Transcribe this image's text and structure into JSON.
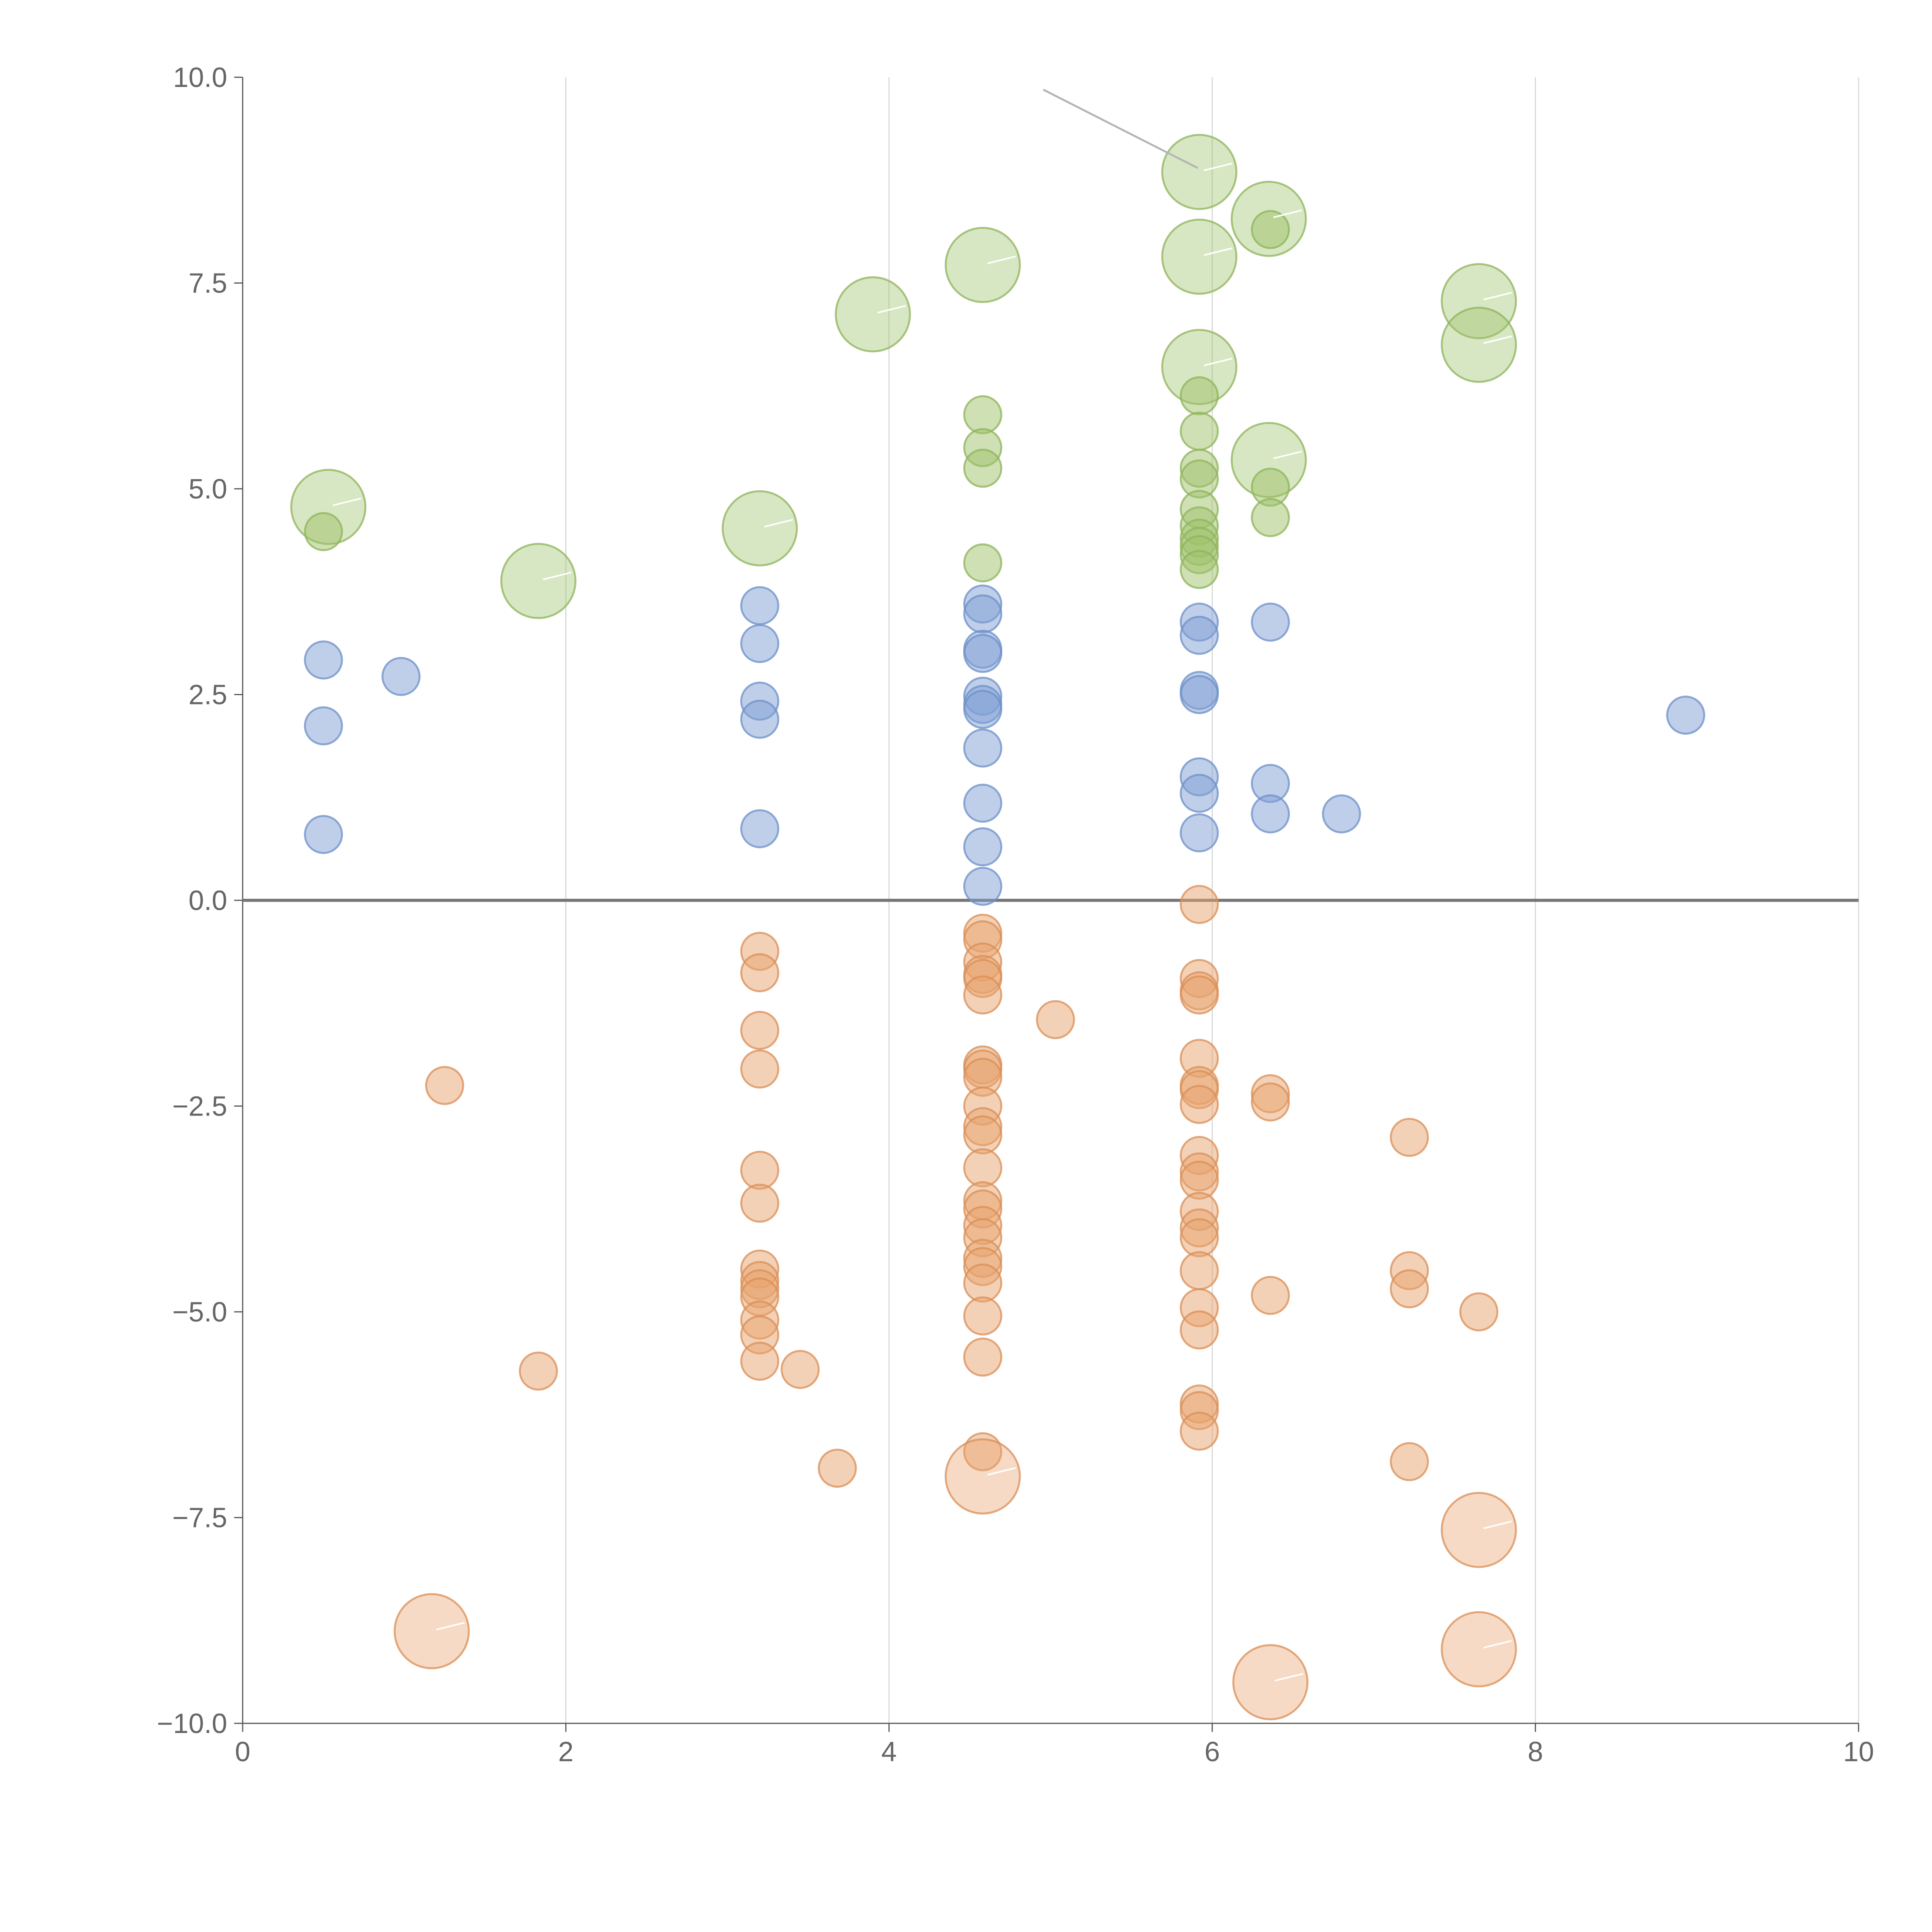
{
  "chart_data": {
    "type": "scatter",
    "title": "",
    "xlabel": "",
    "ylabel": "",
    "xlim": [
      0,
      10
    ],
    "ylim": [
      -10,
      10
    ],
    "grid": "vertical",
    "x_ticks": [
      "0",
      "2",
      "4",
      "6",
      "8",
      "10"
    ],
    "y_ticks": [
      "10.0",
      "7.5",
      "5.0",
      "2.5",
      "0.0",
      "−2.5",
      "−5.0",
      "−7.5",
      "−10.0"
    ],
    "series": [
      {
        "name": "green",
        "color": "#9dc26a",
        "stroke": "#8db35a",
        "points": [
          [
            5.92,
            8.85,
            1
          ],
          [
            6.35,
            8.28,
            1
          ],
          [
            6.36,
            8.15,
            0
          ],
          [
            4.58,
            7.72,
            1
          ],
          [
            5.92,
            7.82,
            1
          ],
          [
            7.65,
            7.28,
            1
          ],
          [
            3.9,
            7.12,
            1
          ],
          [
            7.65,
            6.75,
            1
          ],
          [
            5.92,
            6.48,
            1
          ],
          [
            5.92,
            6.13,
            0
          ],
          [
            4.58,
            5.9,
            0
          ],
          [
            5.92,
            5.7,
            0
          ],
          [
            4.58,
            5.5,
            0
          ],
          [
            4.58,
            5.25,
            0
          ],
          [
            5.92,
            5.25,
            0
          ],
          [
            5.92,
            5.12,
            0
          ],
          [
            6.35,
            5.35,
            1
          ],
          [
            6.36,
            5.02,
            0
          ],
          [
            0.53,
            4.78,
            1
          ],
          [
            0.5,
            4.48,
            0
          ],
          [
            3.2,
            4.52,
            1
          ],
          [
            5.92,
            4.75,
            0
          ],
          [
            6.36,
            4.65,
            0
          ],
          [
            5.92,
            4.55,
            0
          ],
          [
            5.92,
            4.4,
            0
          ],
          [
            5.92,
            4.3,
            0
          ],
          [
            5.92,
            4.2,
            0
          ],
          [
            5.92,
            4.02,
            0
          ],
          [
            4.58,
            4.1,
            0
          ],
          [
            1.83,
            3.88,
            1
          ]
        ]
      },
      {
        "name": "blue",
        "color": "#7f9fd3",
        "stroke": "#6c8fc8",
        "points": [
          [
            0.5,
            2.92,
            0
          ],
          [
            0.98,
            2.72,
            0
          ],
          [
            0.5,
            2.12,
            0
          ],
          [
            0.5,
            0.8,
            0
          ],
          [
            3.2,
            3.58,
            0
          ],
          [
            3.2,
            3.12,
            0
          ],
          [
            3.2,
            2.42,
            0
          ],
          [
            3.2,
            2.2,
            0
          ],
          [
            3.2,
            0.87,
            0
          ],
          [
            4.58,
            3.6,
            0
          ],
          [
            4.58,
            3.48,
            0
          ],
          [
            4.58,
            3.05,
            0
          ],
          [
            4.58,
            3.0,
            0
          ],
          [
            4.58,
            2.48,
            0
          ],
          [
            4.58,
            2.38,
            0
          ],
          [
            4.58,
            2.32,
            0
          ],
          [
            4.58,
            1.85,
            0
          ],
          [
            4.58,
            1.18,
            0
          ],
          [
            4.58,
            0.65,
            0
          ],
          [
            4.58,
            0.17,
            0
          ],
          [
            5.92,
            3.38,
            0
          ],
          [
            5.92,
            3.22,
            0
          ],
          [
            5.92,
            2.55,
            0
          ],
          [
            5.92,
            2.5,
            0
          ],
          [
            5.92,
            1.5,
            0
          ],
          [
            5.92,
            1.3,
            0
          ],
          [
            5.92,
            0.82,
            0
          ],
          [
            6.36,
            3.38,
            0
          ],
          [
            6.36,
            1.42,
            0
          ],
          [
            6.36,
            1.05,
            0
          ],
          [
            6.8,
            1.05,
            0
          ],
          [
            8.93,
            2.25,
            0
          ]
        ]
      },
      {
        "name": "orange",
        "color": "#e8a36d",
        "stroke": "#d98d55",
        "points": [
          [
            1.25,
            -2.25,
            0
          ],
          [
            1.83,
            -5.72,
            0
          ],
          [
            1.17,
            -8.88,
            1
          ],
          [
            3.2,
            -0.62,
            0
          ],
          [
            3.2,
            -0.88,
            0
          ],
          [
            3.2,
            -1.58,
            0
          ],
          [
            3.2,
            -2.05,
            0
          ],
          [
            3.2,
            -3.28,
            0
          ],
          [
            3.2,
            -3.68,
            0
          ],
          [
            3.2,
            -4.48,
            0
          ],
          [
            3.2,
            -4.62,
            0
          ],
          [
            3.2,
            -4.72,
            0
          ],
          [
            3.2,
            -4.82,
            0
          ],
          [
            3.2,
            -5.1,
            0
          ],
          [
            3.2,
            -5.28,
            0
          ],
          [
            3.2,
            -5.6,
            0
          ],
          [
            3.45,
            -5.7,
            0
          ],
          [
            3.68,
            -6.9,
            0
          ],
          [
            4.58,
            -0.4,
            0
          ],
          [
            4.58,
            -0.48,
            0
          ],
          [
            4.58,
            -0.75,
            0
          ],
          [
            4.58,
            -0.9,
            0
          ],
          [
            4.58,
            -0.95,
            0
          ],
          [
            4.58,
            -1.15,
            0
          ],
          [
            4.58,
            -2.0,
            0
          ],
          [
            4.58,
            -2.05,
            0
          ],
          [
            4.58,
            -2.15,
            0
          ],
          [
            4.58,
            -2.5,
            0
          ],
          [
            4.58,
            -2.75,
            0
          ],
          [
            4.58,
            -2.85,
            0
          ],
          [
            4.58,
            -3.25,
            0
          ],
          [
            4.58,
            -3.65,
            0
          ],
          [
            4.58,
            -3.75,
            0
          ],
          [
            4.58,
            -3.95,
            0
          ],
          [
            4.58,
            -4.1,
            0
          ],
          [
            4.58,
            -4.35,
            0
          ],
          [
            4.58,
            -4.45,
            0
          ],
          [
            4.58,
            -4.65,
            0
          ],
          [
            4.58,
            -5.05,
            0
          ],
          [
            4.58,
            -5.55,
            0
          ],
          [
            4.58,
            -6.7,
            0
          ],
          [
            4.58,
            -7.0,
            1
          ],
          [
            5.03,
            -1.45,
            0
          ],
          [
            5.92,
            -0.05,
            0
          ],
          [
            5.92,
            -0.95,
            0
          ],
          [
            5.92,
            -1.1,
            0
          ],
          [
            5.92,
            -1.15,
            0
          ],
          [
            5.92,
            -1.92,
            0
          ],
          [
            5.92,
            -2.25,
            0
          ],
          [
            5.92,
            -2.3,
            0
          ],
          [
            5.92,
            -2.48,
            0
          ],
          [
            5.92,
            -3.1,
            0
          ],
          [
            5.92,
            -3.3,
            0
          ],
          [
            5.92,
            -3.4,
            0
          ],
          [
            5.92,
            -3.78,
            0
          ],
          [
            5.92,
            -3.98,
            0
          ],
          [
            5.92,
            -4.1,
            0
          ],
          [
            5.92,
            -4.5,
            0
          ],
          [
            5.92,
            -4.95,
            0
          ],
          [
            5.92,
            -5.22,
            0
          ],
          [
            5.92,
            -6.12,
            0
          ],
          [
            5.92,
            -6.2,
            0
          ],
          [
            5.92,
            -6.45,
            0
          ],
          [
            6.36,
            -2.35,
            0
          ],
          [
            6.36,
            -2.45,
            0
          ],
          [
            6.36,
            -4.8,
            0
          ],
          [
            6.36,
            -9.5,
            1
          ],
          [
            7.22,
            -2.88,
            0
          ],
          [
            7.22,
            -4.5,
            0
          ],
          [
            7.22,
            -4.72,
            0
          ],
          [
            7.22,
            -6.82,
            0
          ],
          [
            7.65,
            -5.0,
            0
          ],
          [
            7.65,
            -7.65,
            1
          ],
          [
            7.65,
            -9.1,
            1
          ]
        ]
      }
    ]
  }
}
